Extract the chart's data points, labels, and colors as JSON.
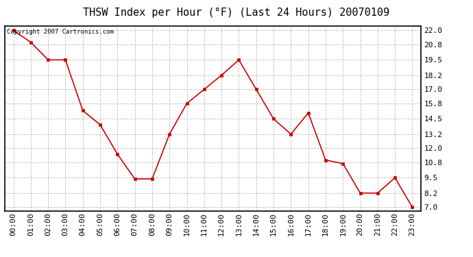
{
  "title": "THSW Index per Hour (°F) (Last 24 Hours) 20070109",
  "copyright": "Copyright 2007 Cartronics.com",
  "hours": [
    "00:00",
    "01:00",
    "02:00",
    "03:00",
    "04:00",
    "05:00",
    "06:00",
    "07:00",
    "08:00",
    "09:00",
    "10:00",
    "11:00",
    "12:00",
    "13:00",
    "14:00",
    "15:00",
    "16:00",
    "17:00",
    "18:00",
    "19:00",
    "20:00",
    "21:00",
    "22:00",
    "23:00"
  ],
  "values": [
    22.0,
    21.0,
    19.5,
    19.5,
    15.2,
    14.0,
    11.5,
    9.4,
    9.4,
    13.2,
    15.8,
    17.0,
    18.2,
    19.5,
    17.0,
    14.5,
    13.2,
    15.0,
    11.0,
    10.7,
    8.2,
    8.2,
    9.5,
    7.0
  ],
  "line_color": "#cc0000",
  "marker_color": "#cc0000",
  "bg_color": "#ffffff",
  "plot_bg_color": "#ffffff",
  "grid_color": "#bbbbbb",
  "yticks": [
    7.0,
    8.2,
    9.5,
    10.8,
    12.0,
    13.2,
    14.5,
    15.8,
    17.0,
    18.2,
    19.5,
    20.8,
    22.0
  ],
  "ylim": [
    6.7,
    22.4
  ],
  "title_fontsize": 11,
  "copyright_fontsize": 6.5,
  "tick_fontsize": 8,
  "marker_size": 3
}
